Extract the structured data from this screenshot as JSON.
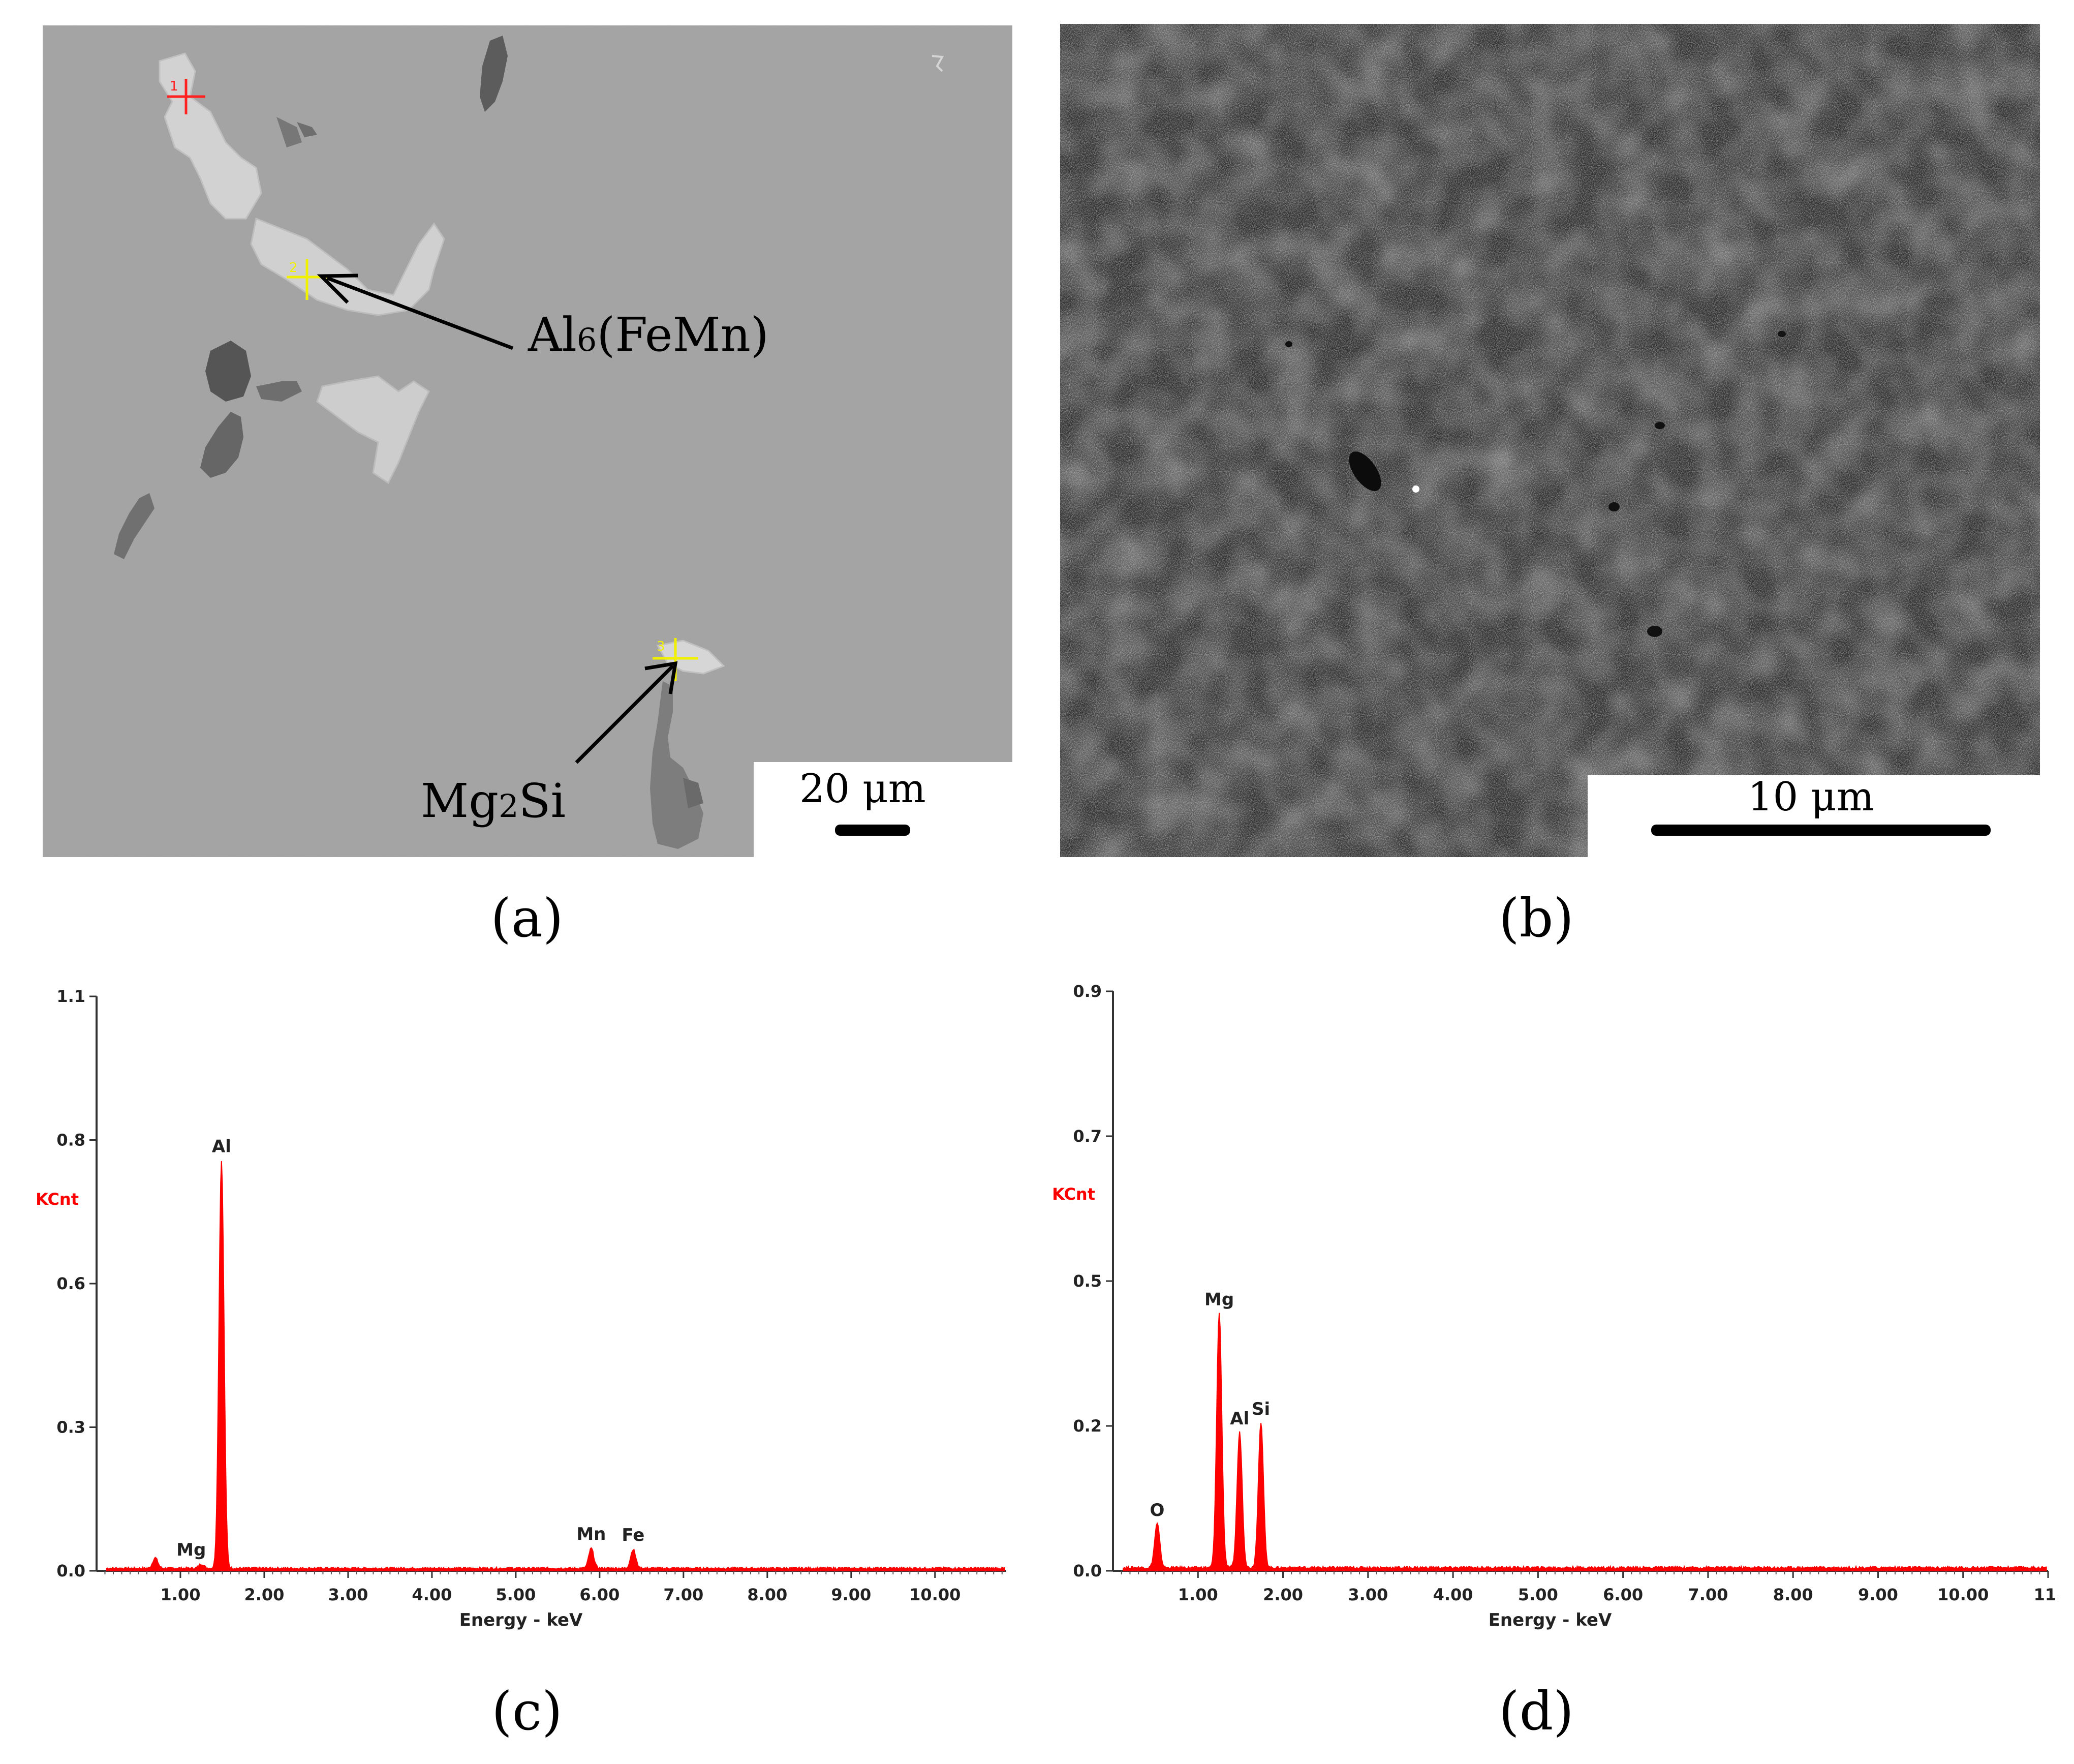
{
  "figure": {
    "panel_labels": [
      "(a)",
      "(b)",
      "(c)",
      "(d)"
    ],
    "panel_a": {
      "scale_bar_text": "20 μm",
      "annotations": [
        {
          "base": "Al",
          "sub": "6",
          "rest": "(FeMn)"
        },
        {
          "base": "Mg",
          "sub": "2",
          "rest": "Si"
        }
      ],
      "marker_numbers": [
        "1",
        "2",
        "3"
      ],
      "marker_colors": [
        "#ff2020",
        "#f0f000",
        "#f0f000"
      ]
    },
    "panel_b": {
      "scale_bar_text": "10 μm"
    }
  },
  "chart_data": [
    {
      "type": "line",
      "panel": "(c)",
      "xlabel": "Energy - keV",
      "ylabel": "KCnt",
      "ylabel_color": "#ff0000",
      "xlim": [
        0,
        10.85
      ],
      "ylim": [
        0,
        1.1
      ],
      "x_ticks": [
        "1.00",
        "2.00",
        "3.00",
        "4.00",
        "5.00",
        "6.00",
        "7.00",
        "8.00",
        "9.00",
        "10.00"
      ],
      "x_tick_values": [
        1,
        2,
        3,
        4,
        5,
        6,
        7,
        8,
        9,
        10
      ],
      "y_ticks": [
        "0.0",
        "0.3",
        "0.6",
        "0.8",
        "1.1"
      ],
      "y_tick_values": [
        0.0,
        0.275,
        0.55,
        0.825,
        1.1
      ],
      "series_color": "#ff0000",
      "peaks": [
        {
          "label": "Mg",
          "x": 1.25,
          "y": 0.008
        },
        {
          "label": "Al",
          "x": 1.49,
          "y": 0.78
        },
        {
          "label": "Mn",
          "x": 5.9,
          "y": 0.038
        },
        {
          "label": "Fe",
          "x": 6.4,
          "y": 0.036
        }
      ],
      "minor_peaks": [
        {
          "x": 0.7,
          "y": 0.02
        }
      ],
      "grid": false
    },
    {
      "type": "line",
      "panel": "(d)",
      "xlabel": "Energy - keV",
      "ylabel": "KCnt",
      "ylabel_color": "#ff0000",
      "xlim": [
        0,
        11.0
      ],
      "ylim": [
        0,
        0.9
      ],
      "x_ticks": [
        "1.00",
        "2.00",
        "3.00",
        "4.00",
        "5.00",
        "6.00",
        "7.00",
        "8.00",
        "9.00",
        "10.00",
        "11."
      ],
      "x_tick_values": [
        1,
        2,
        3,
        4,
        5,
        6,
        7,
        8,
        9,
        10,
        11
      ],
      "y_ticks": [
        "0.0",
        "0.2",
        "0.5",
        "0.7",
        "0.9"
      ],
      "y_tick_values": [
        0.0,
        0.225,
        0.45,
        0.675,
        0.9
      ],
      "series_color": "#ff0000",
      "peaks": [
        {
          "label": "O",
          "x": 0.52,
          "y": 0.068
        },
        {
          "label": "Mg",
          "x": 1.25,
          "y": 0.395
        },
        {
          "label": "Al",
          "x": 1.49,
          "y": 0.21
        },
        {
          "label": "Si",
          "x": 1.74,
          "y": 0.225
        }
      ],
      "minor_peaks": [],
      "grid": false
    }
  ]
}
